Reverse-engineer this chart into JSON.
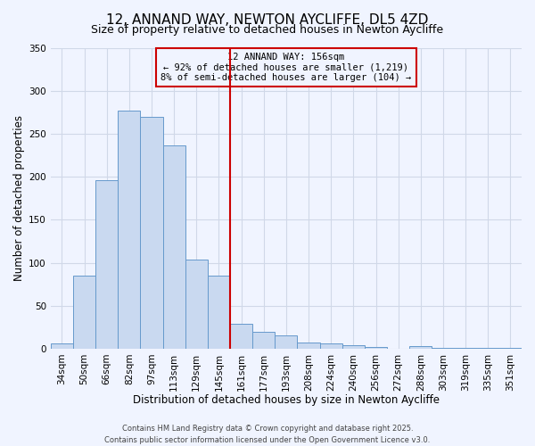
{
  "title": "12, ANNAND WAY, NEWTON AYCLIFFE, DL5 4ZD",
  "subtitle": "Size of property relative to detached houses in Newton Aycliffe",
  "xlabel": "Distribution of detached houses by size in Newton Aycliffe",
  "ylabel": "Number of detached properties",
  "bar_labels": [
    "34sqm",
    "50sqm",
    "66sqm",
    "82sqm",
    "97sqm",
    "113sqm",
    "129sqm",
    "145sqm",
    "161sqm",
    "177sqm",
    "193sqm",
    "208sqm",
    "224sqm",
    "240sqm",
    "256sqm",
    "272sqm",
    "288sqm",
    "303sqm",
    "319sqm",
    "335sqm",
    "351sqm"
  ],
  "bar_values": [
    6,
    85,
    196,
    277,
    270,
    237,
    104,
    85,
    29,
    20,
    15,
    7,
    6,
    4,
    2,
    0,
    3,
    1,
    1,
    1,
    1
  ],
  "bar_color": "#c9d9f0",
  "bar_edge_color": "#6699cc",
  "grid_color": "#d0d8e8",
  "vline_color": "#cc0000",
  "annotation_title": "12 ANNAND WAY: 156sqm",
  "annotation_line1": "← 92% of detached houses are smaller (1,219)",
  "annotation_line2": "8% of semi-detached houses are larger (104) →",
  "annotation_box_color": "#cc0000",
  "ylim": [
    0,
    350
  ],
  "yticks": [
    0,
    50,
    100,
    150,
    200,
    250,
    300,
    350
  ],
  "footnote1": "Contains HM Land Registry data © Crown copyright and database right 2025.",
  "footnote2": "Contains public sector information licensed under the Open Government Licence v3.0.",
  "bg_color": "#f0f4ff",
  "title_fontsize": 11,
  "subtitle_fontsize": 9,
  "axis_label_fontsize": 8.5,
  "tick_fontsize": 7.5,
  "footnote_fontsize": 6
}
